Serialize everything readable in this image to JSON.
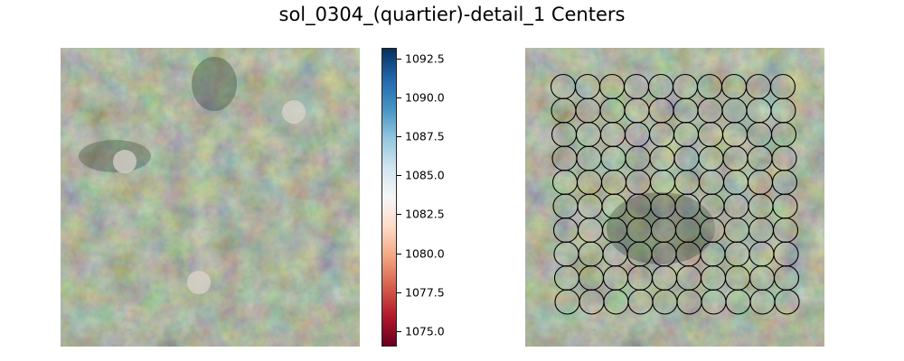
{
  "title": "sol_0304_(quartier)-detail_1 Centers",
  "colorbar": {
    "min": 1074,
    "max": 1093.2,
    "ticks": [
      "1092.5",
      "1090.0",
      "1087.5",
      "1085.0",
      "1082.5",
      "1080.0",
      "1077.5",
      "1075.0"
    ],
    "tick_values": [
      1092.5,
      1090.0,
      1087.5,
      1085.0,
      1082.5,
      1080.0,
      1077.5,
      1075.0
    ],
    "colormap": "RdBu",
    "colors": [
      "#67001f",
      "#b2182b",
      "#d6604d",
      "#f4a582",
      "#fddbc7",
      "#f7f7f7",
      "#d1e5f0",
      "#92c5de",
      "#4393c3",
      "#2166ac",
      "#053061"
    ]
  },
  "left_panel": {
    "image": "aerial-terrain-texture",
    "markers": 3
  },
  "right_panel": {
    "image": "aerial-terrain-texture",
    "grid_rows": 10,
    "grid_cols": 10
  }
}
